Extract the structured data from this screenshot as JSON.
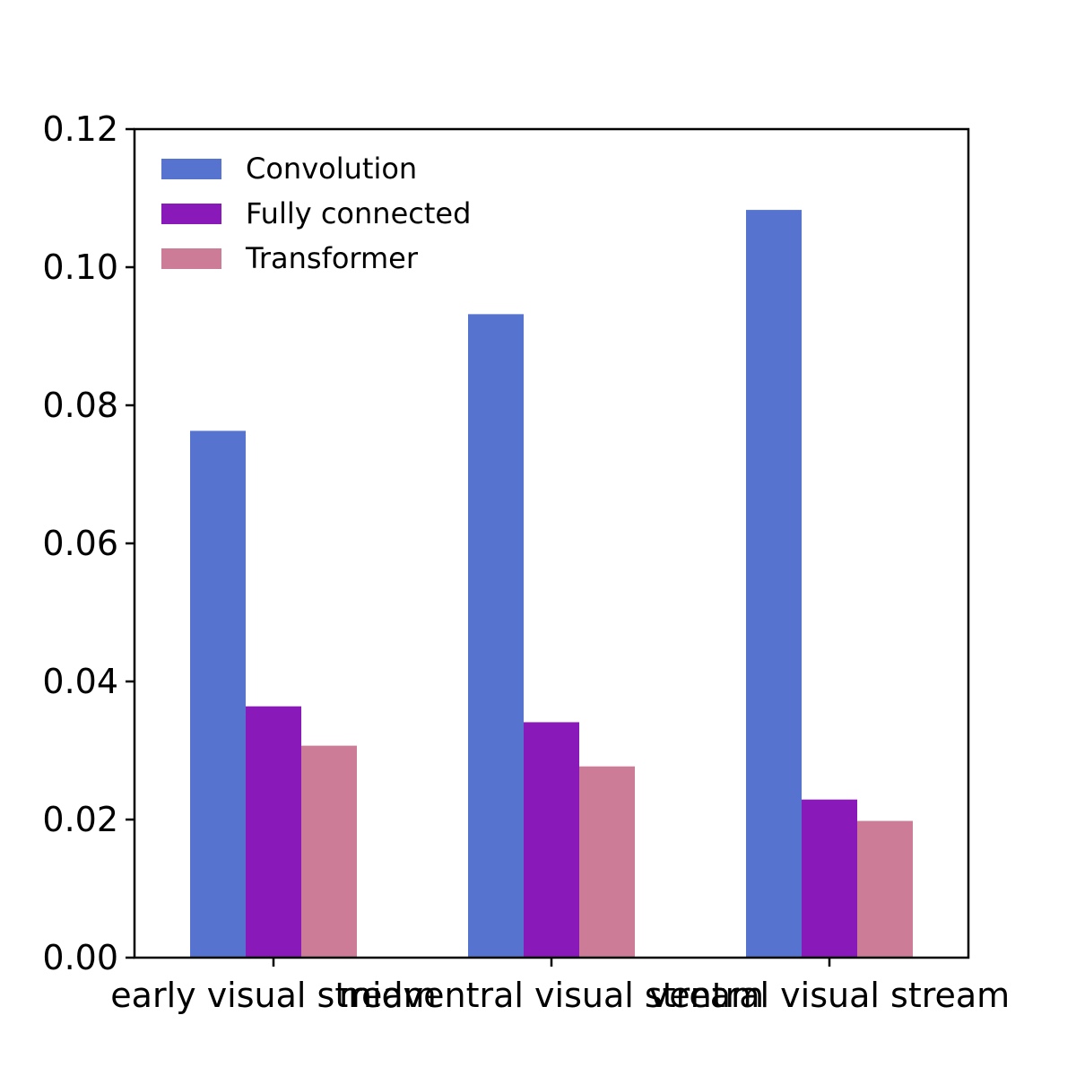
{
  "chart_data": {
    "type": "bar",
    "title": "",
    "xlabel": "",
    "ylabel": "",
    "categories": [
      "early visual stream",
      "midventral visual stream",
      "ventral visual stream"
    ],
    "series": [
      {
        "name": "Convolution",
        "color": "#5674cf",
        "values": [
          0.0763,
          0.0932,
          0.1083
        ]
      },
      {
        "name": "Fully connected",
        "color": "#8919b9",
        "values": [
          0.0364,
          0.0341,
          0.0229
        ]
      },
      {
        "name": "Transformer",
        "color": "#cd7c98",
        "values": [
          0.0307,
          0.0277,
          0.0198
        ]
      }
    ],
    "ylim": [
      0,
      0.12
    ],
    "yticks": [
      "0.00",
      "0.02",
      "0.04",
      "0.06",
      "0.08",
      "0.10",
      "0.12"
    ],
    "grid": false,
    "legend_position": "top-left"
  }
}
